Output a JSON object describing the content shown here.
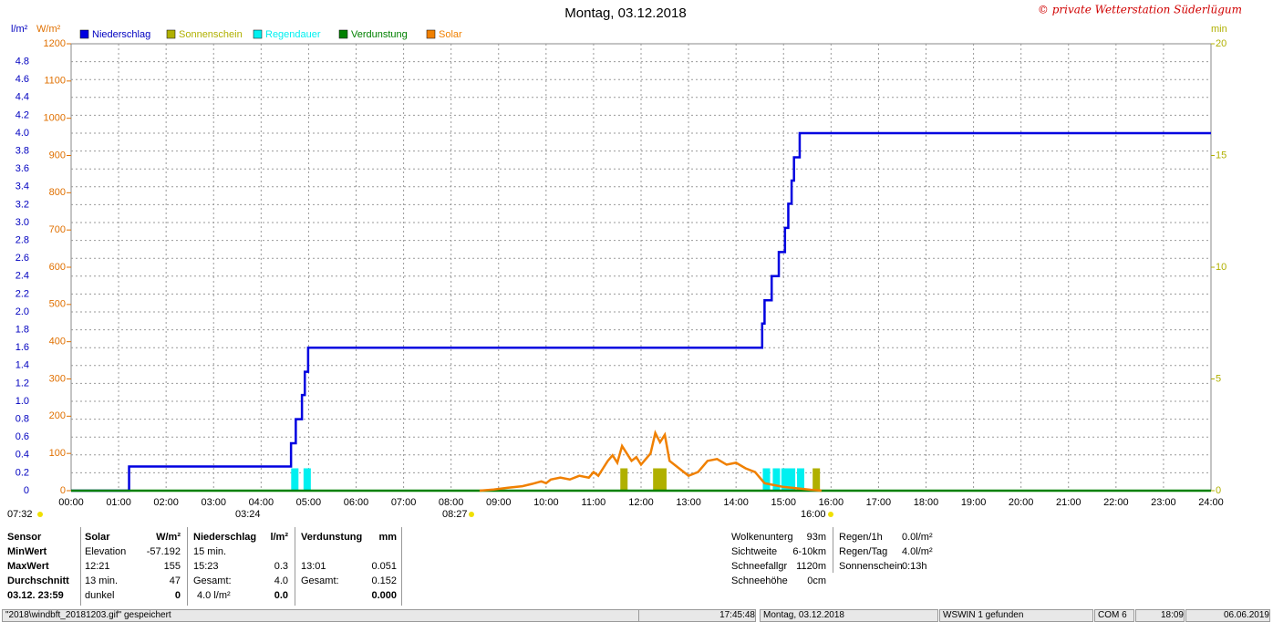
{
  "chart_data": {
    "type": "combo",
    "title": "Montag, 03.12.2018",
    "credit": "© private Wetterstation Süderlügum",
    "ylabel": "l/m²",
    "y2label": "W/m²",
    "y3label": "min",
    "xlim": [
      0,
      24
    ],
    "xticks": [
      {
        "value": 0,
        "label": "00:00"
      },
      {
        "value": 1,
        "label": "01:00"
      },
      {
        "value": 2,
        "label": "02:00"
      },
      {
        "value": 3,
        "label": "03:00"
      },
      {
        "value": 4,
        "label": "04:00"
      },
      {
        "value": 5,
        "label": "05:00"
      },
      {
        "value": 6,
        "label": "06:00"
      },
      {
        "value": 7,
        "label": "07:00"
      },
      {
        "value": 8,
        "label": "08:00"
      },
      {
        "value": 9,
        "label": "09:00"
      },
      {
        "value": 10,
        "label": "10:00"
      },
      {
        "value": 11,
        "label": "11:00"
      },
      {
        "value": 12,
        "label": "12:00"
      },
      {
        "value": 13,
        "label": "13:00"
      },
      {
        "value": 14,
        "label": "14:00"
      },
      {
        "value": 15,
        "label": "15:00"
      },
      {
        "value": 16,
        "label": "16:00"
      },
      {
        "value": 17,
        "label": "17:00"
      },
      {
        "value": 18,
        "label": "18:00"
      },
      {
        "value": 19,
        "label": "19:00"
      },
      {
        "value": 20,
        "label": "20:00"
      },
      {
        "value": 21,
        "label": "21:00"
      },
      {
        "value": 22,
        "label": "22:00"
      },
      {
        "value": 23,
        "label": "23:00"
      },
      {
        "value": 24,
        "label": "24:00"
      }
    ],
    "ylim": [
      0,
      5
    ],
    "yticks": [
      0,
      0.2,
      0.4,
      0.6,
      0.8,
      {
        "value": 1,
        "label": "1.0"
      },
      1.2,
      1.4,
      1.6,
      1.8,
      {
        "value": 2,
        "label": "2.0"
      },
      2.2,
      2.4,
      2.6,
      2.8,
      {
        "value": 3,
        "label": "3.0"
      },
      3.2,
      3.4,
      3.6,
      3.8,
      {
        "value": 4,
        "label": "4.0"
      },
      4.2,
      4.4,
      4.6,
      4.8
    ],
    "y2lim": [
      0,
      1200
    ],
    "y2ticks": [
      0,
      100,
      200,
      300,
      400,
      500,
      600,
      700,
      800,
      900,
      1000,
      1100,
      1200
    ],
    "y3lim": [
      0,
      20
    ],
    "y3ticks": [
      0,
      5,
      10,
      15,
      20
    ],
    "grid": true,
    "series": [
      {
        "name": "Niederschlag",
        "color": "#0000e0",
        "type": "line",
        "axis": "y",
        "x": [
          0,
          1.22,
          1.22,
          4.63,
          4.63,
          4.73,
          4.73,
          4.86,
          4.86,
          4.92,
          4.92,
          4.99,
          4.99,
          14.55,
          14.55,
          14.6,
          14.6,
          14.75,
          14.75,
          14.9,
          14.9,
          15.03,
          15.03,
          15.1,
          15.1,
          15.17,
          15.17,
          15.22,
          15.22,
          15.34,
          15.34,
          24
        ],
        "values": [
          0,
          0,
          0.27,
          0.27,
          0.53,
          0.53,
          0.8,
          0.8,
          1.07,
          1.07,
          1.33,
          1.33,
          1.6,
          1.6,
          1.87,
          1.87,
          2.13,
          2.13,
          2.4,
          2.4,
          2.67,
          2.67,
          2.94,
          2.94,
          3.21,
          3.21,
          3.47,
          3.47,
          3.73,
          3.73,
          4.0,
          4.0
        ]
      },
      {
        "name": "Sonnenschein",
        "color": "#b0b000",
        "type": "bar",
        "axis": "y3",
        "x": [
          11.64,
          12.33,
          12.46,
          15.69
        ],
        "values": [
          1,
          1,
          1,
          1
        ]
      },
      {
        "name": "Regendauer",
        "color": "#00f0f0",
        "type": "bar",
        "axis": "y3",
        "x": [
          4.71,
          4.97,
          14.64,
          14.85,
          15.03,
          15.17,
          15.36
        ],
        "values": [
          1,
          1,
          1,
          1,
          1,
          1,
          1
        ]
      },
      {
        "name": "Verdunstung",
        "color": "#008000",
        "type": "line",
        "axis": "y",
        "x": [
          0,
          24
        ],
        "values": [
          0,
          0
        ]
      },
      {
        "name": "Solar",
        "color": "#f08000",
        "type": "line",
        "axis": "y2",
        "x": [
          8.6,
          8.9,
          9.2,
          9.5,
          9.7,
          9.9,
          10.0,
          10.1,
          10.3,
          10.5,
          10.7,
          10.9,
          11.0,
          11.1,
          11.2,
          11.3,
          11.4,
          11.5,
          11.6,
          11.7,
          11.8,
          11.9,
          12.0,
          12.1,
          12.2,
          12.3,
          12.4,
          12.5,
          12.6,
          12.8,
          13.0,
          13.2,
          13.4,
          13.6,
          13.8,
          14.0,
          14.2,
          14.4,
          14.6,
          14.8,
          15.0,
          15.3,
          15.6,
          15.8
        ],
        "values": [
          0,
          3,
          8,
          12,
          18,
          25,
          20,
          30,
          35,
          30,
          40,
          35,
          50,
          40,
          60,
          80,
          95,
          75,
          120,
          100,
          80,
          90,
          70,
          85,
          100,
          155,
          130,
          150,
          80,
          60,
          40,
          50,
          80,
          85,
          70,
          75,
          60,
          50,
          20,
          15,
          10,
          6,
          2,
          0
        ]
      }
    ],
    "annotations": [
      "07:32",
      "03:24",
      "08:27",
      "16:00"
    ]
  },
  "stats": {
    "row_labels": [
      "Sensor",
      "MinWert",
      "MaxWert",
      "Durchschnitt",
      "03.12. 23:59"
    ],
    "blocks": [
      {
        "title": "Solar",
        "unit": "W/m²",
        "rows": [
          {
            "left": "Elevation",
            "right": "-57.192"
          },
          {
            "left": "12:21",
            "right": "155"
          },
          {
            "left": "13 min.",
            "right": "47"
          },
          {
            "left": "dunkel",
            "right": "0"
          }
        ]
      },
      {
        "title": "Niederschlag",
        "unit": "l/m²",
        "rows": [
          {
            "left": "15 min."
          },
          {
            "left": "15:23",
            "right": "0.3"
          },
          {
            "left": "Gesamt:",
            "right": "4.0"
          },
          {
            "left": "4.0 l/m²",
            "right": "0.0"
          }
        ]
      },
      {
        "title": "Verdunstung",
        "unit": "mm",
        "rows": [
          {},
          {
            "left": "13:01",
            "right": "0.051"
          },
          {
            "left": "Gesamt:",
            "right": "0.152"
          },
          {
            "right": "0.000"
          }
        ]
      }
    ],
    "conditions": [
      [
        "Wolkenunterg",
        "93m"
      ],
      [
        "Sichtweite",
        "6-10km"
      ],
      [
        "Schneefallgr",
        "1120m"
      ],
      [
        "Schneehöhe",
        "0cm"
      ]
    ],
    "rain": [
      [
        "Regen/1h",
        "0.0l/m²"
      ],
      [
        "Regen/Tag",
        "4.0l/m²"
      ],
      [
        "Sonnenschein",
        "0:13h"
      ]
    ]
  },
  "status_bar": [
    "\"2018\\windbft_20181203.gif\" gespeichert",
    "17:45:48",
    "Montag, 03.12.2018",
    "WSWIN 1 gefunden",
    "COM 6",
    "18:09",
    "06.06.2019"
  ]
}
